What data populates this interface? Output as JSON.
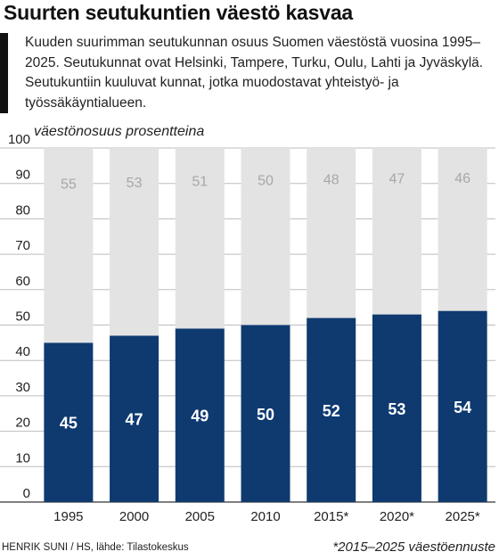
{
  "chart_data": {
    "type": "bar",
    "stacked": true,
    "title": "Suurten seutukuntien väestö kasvaa",
    "subtitle": "Kuuden suurimman seutukunnan osuus Suomen väestöstä vuosina 1995–2025. Seutukunnat ovat Helsinki, Tampere, Turku, Oulu, Lahti ja Jyväskylä. Seutukuntiin kuuluvat kunnat, jotka muodostavat yhteistyö- ja työssäkäyntialueen.",
    "ylabel": "väestönosuus prosentteina",
    "xlabel": "",
    "ylim": [
      0,
      100
    ],
    "yticks": [
      0,
      10,
      20,
      30,
      40,
      50,
      60,
      70,
      80,
      90,
      100
    ],
    "grid": true,
    "categories": [
      "1995",
      "2000",
      "2005",
      "2010",
      "2015*",
      "2020*",
      "2025*"
    ],
    "series": [
      {
        "values": [
          45,
          47,
          49,
          50,
          52,
          53,
          54
        ],
        "color": "#0e3a70"
      },
      {
        "values": [
          55,
          53,
          51,
          50,
          48,
          47,
          46
        ],
        "color": "#e3e3e3"
      }
    ]
  },
  "footer": {
    "source": "HENRIK SUNI / HS, lähde: Tilastokeskus",
    "note": "*2015–2025 väestöennuste"
  }
}
